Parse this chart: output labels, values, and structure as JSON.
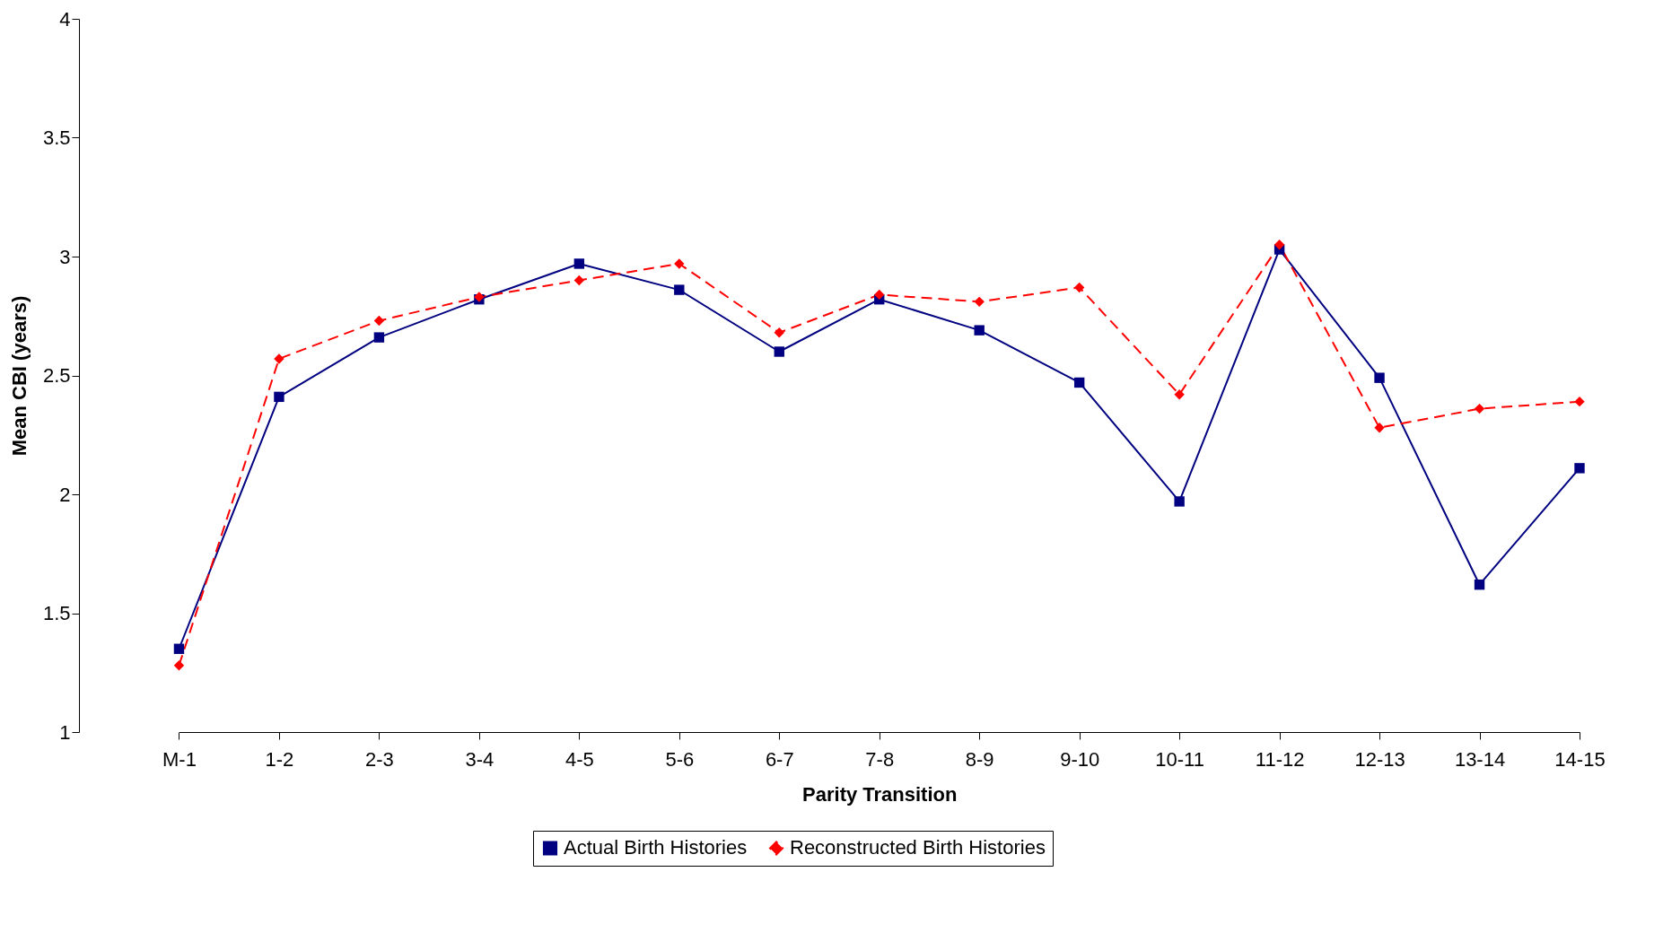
{
  "chart_data": {
    "type": "line",
    "xlabel": "Parity Transition",
    "ylabel": "Mean CBI (years)",
    "categories": [
      "M-1",
      "1-2",
      "2-3",
      "3-4",
      "4-5",
      "5-6",
      "6-7",
      "7-8",
      "8-9",
      "9-10",
      "10-11",
      "11-12",
      "12-13",
      "13-14",
      "14-15"
    ],
    "ylim": [
      1,
      4
    ],
    "yticks": [
      1,
      1.5,
      2,
      2.5,
      3,
      3.5,
      4
    ],
    "legend": "bottom",
    "series": [
      {
        "name": "Actual Birth Histories",
        "color": "#000080",
        "marker": "square",
        "line_style": "solid",
        "values": [
          1.35,
          2.41,
          2.66,
          2.82,
          2.97,
          2.86,
          2.6,
          2.82,
          2.69,
          2.47,
          1.97,
          3.03,
          2.49,
          1.62,
          2.11
        ]
      },
      {
        "name": "Reconstructed Birth Histories",
        "color": "#ff0000",
        "marker": "diamond",
        "line_style": "dashed",
        "values": [
          1.28,
          2.57,
          2.73,
          2.83,
          2.9,
          2.97,
          2.68,
          2.84,
          2.81,
          2.87,
          2.42,
          3.05,
          2.28,
          2.36,
          2.39
        ]
      }
    ]
  }
}
